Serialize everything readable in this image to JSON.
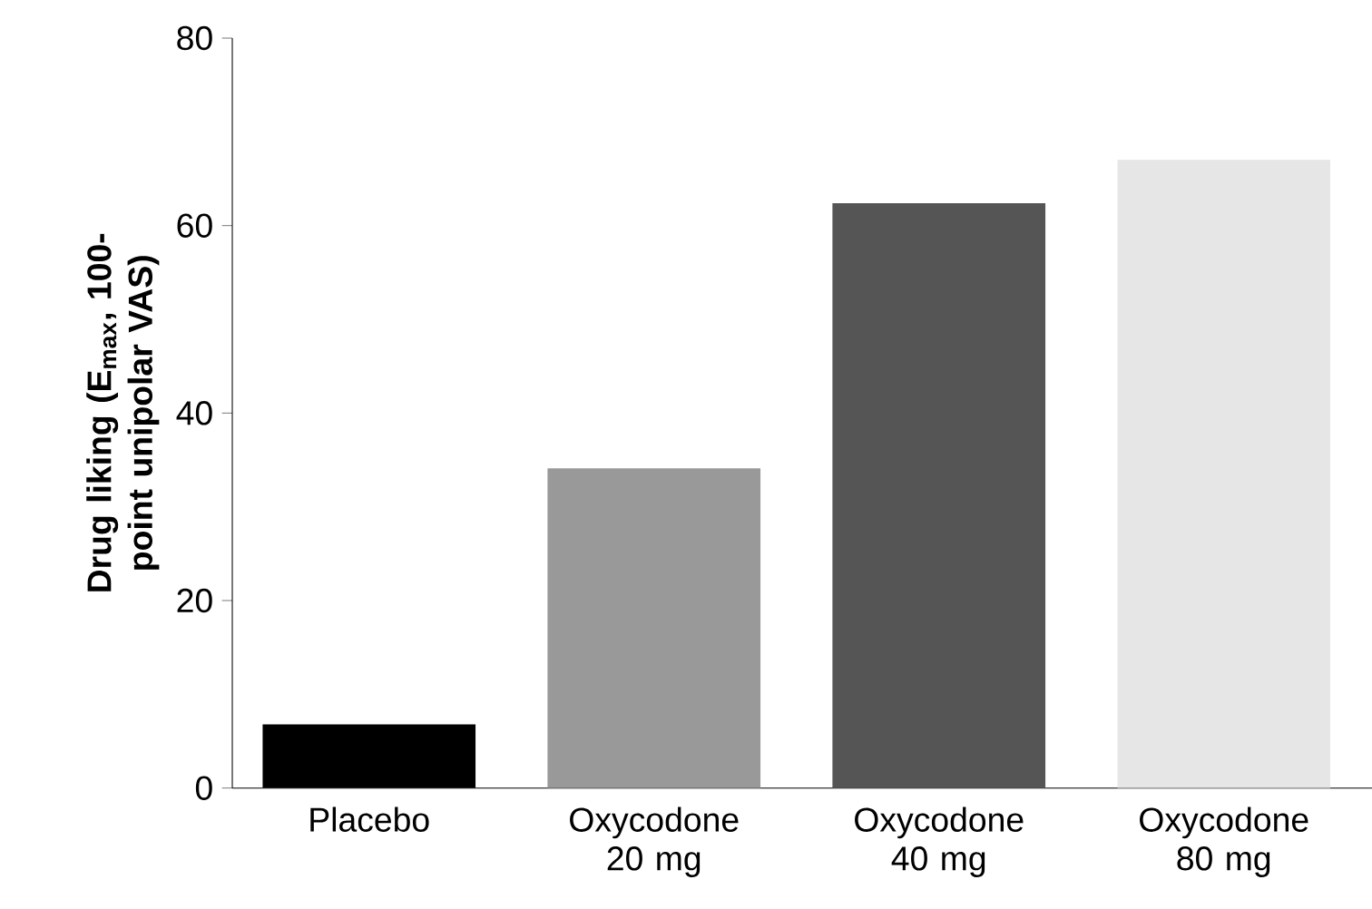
{
  "chart_data": {
    "type": "bar",
    "ylabel": "Drug liking (E$_{max}$, 100-point unipolar VAS)",
    "categories": [
      "Placebo",
      "Oxycodone 20 mg",
      "Oxycodone 40 mg",
      "Oxycodone 80 mg"
    ],
    "values": [
      6.8,
      34.1,
      62.4,
      67.0
    ],
    "colors": [
      "#000000",
      "#999999",
      "#555555",
      "#e6e6e6"
    ],
    "ylim": [
      0,
      80
    ],
    "yticks": [
      0,
      20,
      40,
      60,
      80
    ]
  }
}
